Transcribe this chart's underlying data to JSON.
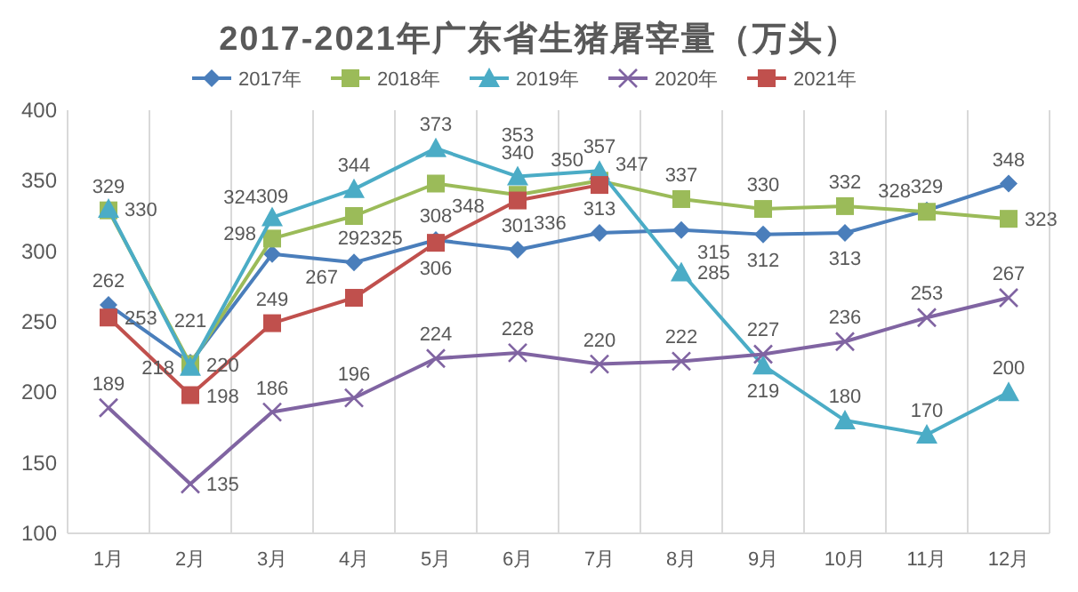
{
  "chart_data": {
    "type": "line",
    "title": "2017-2021年广东省生猪屠宰量（万头）",
    "categories": [
      "1月",
      "2月",
      "3月",
      "4月",
      "5月",
      "6月",
      "7月",
      "8月",
      "9月",
      "10月",
      "11月",
      "12月"
    ],
    "series": [
      {
        "name": "2017年",
        "color": "#4a7ebb",
        "marker": "diamond",
        "values": [
          262,
          221,
          298,
          292,
          308,
          301,
          313,
          315,
          312,
          313,
          329,
          348
        ]
      },
      {
        "name": "2018年",
        "color": "#9bbb59",
        "marker": "square",
        "values": [
          329,
          220,
          309,
          325,
          348,
          340,
          350,
          337,
          330,
          332,
          328,
          323
        ]
      },
      {
        "name": "2019年",
        "color": "#4bacc6",
        "marker": "triangle",
        "values": [
          330,
          218,
          324,
          344,
          373,
          353,
          357,
          285,
          219,
          180,
          170,
          200
        ]
      },
      {
        "name": "2020年",
        "color": "#8064a2",
        "marker": "cross",
        "values": [
          189,
          135,
          186,
          196,
          224,
          228,
          220,
          222,
          227,
          236,
          253,
          267
        ]
      },
      {
        "name": "2021年",
        "color": "#c0504d",
        "marker": "square",
        "values": [
          253,
          198,
          249,
          267,
          306,
          336,
          347,
          null,
          null,
          null,
          null,
          null
        ]
      }
    ],
    "ylim": [
      100,
      400
    ],
    "yticks": [
      100,
      150,
      200,
      250,
      300,
      350,
      400
    ],
    "grid": "x",
    "legend": "top",
    "data_labels": true,
    "line_style": "solid"
  }
}
